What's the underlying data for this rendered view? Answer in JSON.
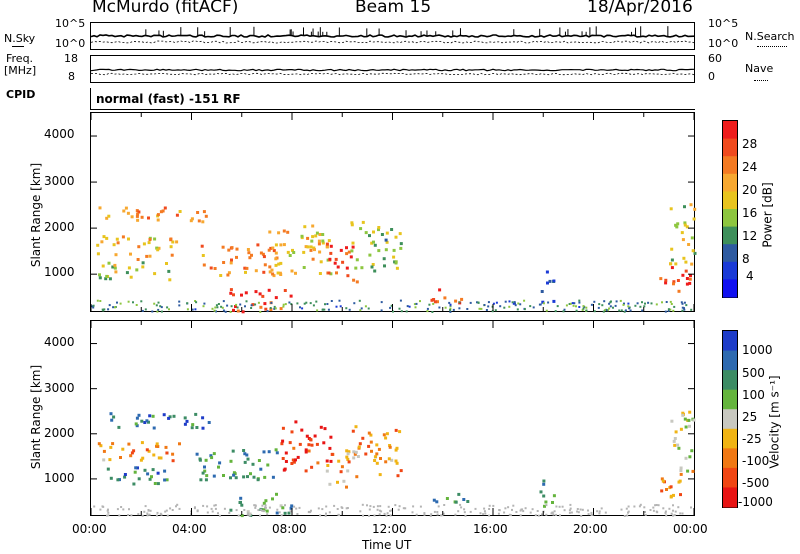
{
  "header": {
    "title_left": "McMurdo (fitACF)",
    "title_center": "Beam 15",
    "title_right": "18/Apr/2016"
  },
  "strip1": {
    "left_label": "N.Sky",
    "left_ticks": [
      "10^5",
      "10^0"
    ],
    "right_ticks": [
      "10^5",
      "10^0"
    ],
    "right_label": "N.Search"
  },
  "strip2": {
    "left_label_1": "Freq.",
    "left_label_2": "[MHz]",
    "left_ticks": [
      "18",
      "8"
    ],
    "right_ticks": [
      "60",
      "0"
    ],
    "right_label": "Nave"
  },
  "strip3": {
    "left_label": "CPID",
    "text": "normal (fast) -151 RF"
  },
  "chart_data": [
    {
      "type": "heatmap",
      "title": "",
      "ylabel": "Slant Range [km]",
      "xlabel": "",
      "yticks": [
        "4000",
        "3000",
        "2000",
        "1000"
      ],
      "ylim": [
        200,
        4500
      ],
      "xlim": [
        0,
        24
      ],
      "colorbar": {
        "label": "Power [dB]",
        "ticks": [
          "28",
          "24",
          "20",
          "16",
          "12",
          "8",
          "4"
        ],
        "colors": [
          "#ee1c1c",
          "#f04a1e",
          "#f47a22",
          "#f7a830",
          "#e8c41e",
          "#8dc63f",
          "#3d8f5a",
          "#2d5aa0",
          "#1a3ad6",
          "#1010f0"
        ]
      },
      "regions": [
        {
          "t0": 0.3,
          "t1": 4.8,
          "r0": 2150,
          "r1": 2500,
          "level": 0.7
        },
        {
          "t0": 0.2,
          "t1": 3.5,
          "r0": 1350,
          "r1": 1850,
          "level": 0.65
        },
        {
          "t0": 0.2,
          "t1": 3.2,
          "r0": 900,
          "r1": 1300,
          "level": 0.45
        },
        {
          "t0": 4.0,
          "t1": 7.5,
          "r0": 1000,
          "r1": 1700,
          "level": 0.75
        },
        {
          "t0": 5.5,
          "t1": 8.0,
          "r0": 200,
          "r1": 700,
          "level": 0.98
        },
        {
          "t0": 7.0,
          "t1": 9.5,
          "r0": 1000,
          "r1": 2100,
          "level": 0.6
        },
        {
          "t0": 9.3,
          "t1": 10.6,
          "r0": 800,
          "r1": 1700,
          "level": 0.92
        },
        {
          "t0": 10.3,
          "t1": 12.3,
          "r0": 1100,
          "r1": 2200,
          "level": 0.45
        },
        {
          "t0": 13.5,
          "t1": 15.2,
          "r0": 400,
          "r1": 700,
          "level": 0.85
        },
        {
          "t0": 17.8,
          "t1": 18.4,
          "r0": 400,
          "r1": 1100,
          "level": 0.25
        },
        {
          "t0": 22.6,
          "t1": 24.0,
          "r0": 600,
          "r1": 1200,
          "level": 0.95
        },
        {
          "t0": 23.0,
          "t1": 24.0,
          "r0": 1200,
          "r1": 2600,
          "level": 0.55
        }
      ]
    },
    {
      "type": "heatmap",
      "title": "",
      "ylabel": "Slant Range [km]",
      "xlabel": "Time UT",
      "yticks": [
        "4000",
        "3000",
        "2000",
        "1000"
      ],
      "ylim": [
        200,
        4500
      ],
      "xlim": [
        0,
        24
      ],
      "xticks": [
        "00:00",
        "04:00",
        "08:00",
        "12:00",
        "16:00",
        "20:00",
        "00:00"
      ],
      "colorbar": {
        "label": "Velocity [m s⁻¹]",
        "ticks": [
          "1000",
          "500",
          "100",
          "25",
          "-25",
          "-100",
          "-500",
          "-1000"
        ],
        "colors": [
          "#1e3cc8",
          "#2d6ab0",
          "#3c8c64",
          "#64b43c",
          "#c8c8c0",
          "#f0b414",
          "#f07814",
          "#f04614",
          "#e81414"
        ]
      },
      "regions": [
        {
          "t0": 0.3,
          "t1": 4.8,
          "r0": 2150,
          "r1": 2500,
          "level": 0.85
        },
        {
          "t0": 0.2,
          "t1": 3.5,
          "r0": 1350,
          "r1": 1850,
          "level": 0.3
        },
        {
          "t0": 0.2,
          "t1": 3.2,
          "r0": 900,
          "r1": 1300,
          "level": 0.8
        },
        {
          "t0": 4.0,
          "t1": 7.5,
          "r0": 1000,
          "r1": 1700,
          "level": 0.75
        },
        {
          "t0": 5.5,
          "t1": 8.0,
          "r0": 200,
          "r1": 700,
          "level": 0.7
        },
        {
          "t0": 7.5,
          "t1": 9.5,
          "r0": 1200,
          "r1": 2300,
          "level": 0.05
        },
        {
          "t0": 9.3,
          "t1": 10.6,
          "r0": 800,
          "r1": 1700,
          "level": 0.3
        },
        {
          "t0": 10.3,
          "t1": 12.3,
          "r0": 1100,
          "r1": 2200,
          "level": 0.3
        },
        {
          "t0": 13.5,
          "t1": 15.2,
          "r0": 400,
          "r1": 700,
          "level": 0.75
        },
        {
          "t0": 17.8,
          "t1": 18.4,
          "r0": 400,
          "r1": 1100,
          "level": 0.75
        },
        {
          "t0": 22.6,
          "t1": 24.0,
          "r0": 600,
          "r1": 1200,
          "level": 0.3
        },
        {
          "t0": 23.0,
          "t1": 24.0,
          "r0": 1200,
          "r1": 2600,
          "level": 0.5
        }
      ]
    }
  ]
}
